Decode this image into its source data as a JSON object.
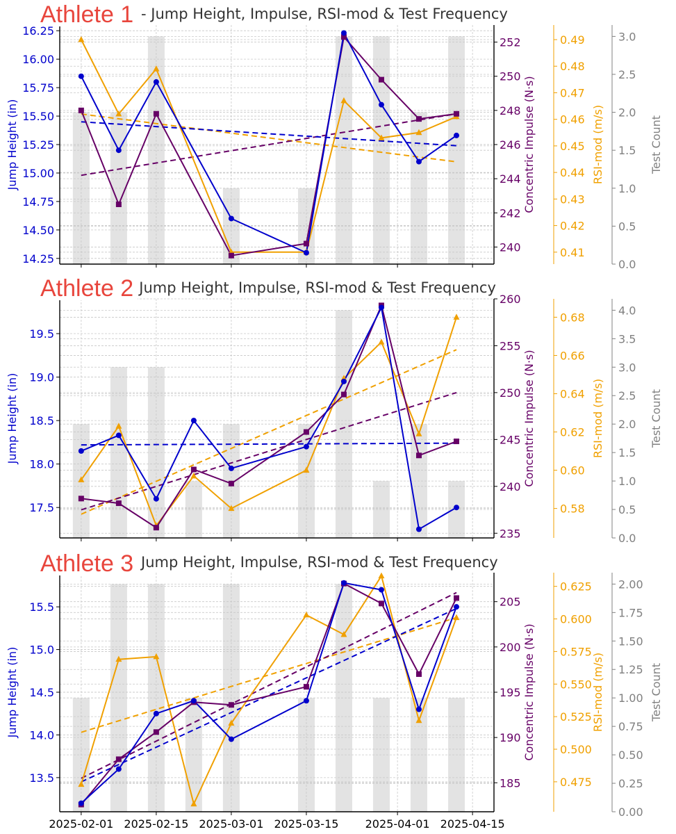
{
  "colors": {
    "jump": "#0000cc",
    "impulse": "#660066",
    "rsi": "#f0a000",
    "count": "#808080",
    "bars": "#e3e3e3",
    "athlete_tag": "#e8453c"
  },
  "x_axis": {
    "ticks": [
      "2025-02-01",
      "2025-02-15",
      "2025-03-01",
      "2025-03-15",
      "2025-04-01",
      "2025-04-15"
    ]
  },
  "panels": [
    {
      "athlete_label": "Athlete 1",
      "title": "- Jump Height, Impulse, RSI-mod & Test Frequency"
    },
    {
      "athlete_label": "Athlete 2",
      "title": "- Jump Height, Impulse, RSI-mod & Test Frequency"
    },
    {
      "athlete_label": "Athlete 3",
      "title": "Jump Height, Impulse, RSI-mod & Test Frequency"
    }
  ],
  "chart_data": [
    {
      "type": "line",
      "title": "Athlete 1 - Jump Height, Impulse, RSI-mod & Test Frequency",
      "dates": [
        "2025-02-01",
        "2025-02-08",
        "2025-02-15",
        "2025-03-01",
        "2025-03-15",
        "2025-03-22",
        "2025-03-29",
        "2025-04-05",
        "2025-04-12"
      ],
      "jump_height_in": [
        15.85,
        15.2,
        15.8,
        14.6,
        14.3,
        16.23,
        15.6,
        15.1,
        15.33
      ],
      "impulse_ns": [
        248,
        242.5,
        247.8,
        239.5,
        240.2,
        252.3,
        249.8,
        247.5,
        247.8
      ],
      "rsi_mod": [
        0.49,
        0.462,
        0.479,
        0.41,
        0.41,
        0.467,
        0.453,
        0.455,
        0.461
      ],
      "test_bar_dates": [
        "2025-02-01",
        "2025-02-08",
        "2025-02-15",
        "2025-03-01",
        "2025-03-15",
        "2025-03-22",
        "2025-03-29",
        "2025-04-05",
        "2025-04-12"
      ],
      "test_count": [
        2,
        2,
        3,
        1,
        1,
        3,
        3,
        2,
        3
      ],
      "trend": {
        "jump": [
          15.45,
          15.24
        ],
        "impulse": [
          244.2,
          247.8
        ],
        "rsi": [
          0.462,
          0.444
        ]
      },
      "yaxis_jump": {
        "label": "Jump Height (in)",
        "range": [
          14.2,
          16.3
        ],
        "ticks": [
          14.25,
          14.5,
          14.75,
          15.0,
          15.25,
          15.5,
          15.75,
          16.0,
          16.25
        ],
        "decimals": 2
      },
      "yaxis_impulse": {
        "label": "Concentric Impulse (N·s)",
        "range": [
          239,
          253
        ],
        "ticks": [
          240,
          242,
          244,
          246,
          248,
          250,
          252
        ],
        "decimals": 0
      },
      "yaxis_rsi": {
        "label": "RSI-mod (m/s)",
        "range": [
          0.4055,
          0.4955
        ],
        "ticks": [
          0.41,
          0.42,
          0.43,
          0.44,
          0.45,
          0.46,
          0.47,
          0.48,
          0.49
        ],
        "decimals": 2
      },
      "yaxis_count": {
        "label": "Test Count",
        "range": [
          0,
          3.15
        ],
        "ticks": [
          0.0,
          0.5,
          1.0,
          1.5,
          2.0,
          2.5,
          3.0
        ],
        "decimals": 1
      }
    },
    {
      "type": "line",
      "title": "Athlete 2 - Jump Height, Impulse, RSI-mod & Test Frequency",
      "dates": [
        "2025-02-01",
        "2025-02-08",
        "2025-02-15",
        "2025-02-22",
        "2025-03-01",
        "2025-03-15",
        "2025-03-22",
        "2025-03-29",
        "2025-04-05",
        "2025-04-12"
      ],
      "jump_height_in": [
        18.15,
        18.33,
        17.6,
        18.5,
        17.95,
        18.2,
        18.95,
        19.8,
        17.25,
        17.5
      ],
      "impulse_ns": [
        238.7,
        238.2,
        235.6,
        241.8,
        240.3,
        245.8,
        249.8,
        259.3,
        243.3,
        244.8
      ],
      "rsi_mod": [
        0.595,
        0.623,
        0.571,
        0.597,
        0.58,
        0.6,
        0.648,
        0.667,
        0.619,
        0.68
      ],
      "test_bar_dates": [
        "2025-02-01",
        "2025-02-08",
        "2025-02-15",
        "2025-02-22",
        "2025-03-01",
        "2025-03-15",
        "2025-03-22",
        "2025-03-29",
        "2025-04-05",
        "2025-04-12"
      ],
      "test_count": [
        2,
        3,
        3,
        1,
        2,
        2,
        4,
        1,
        2,
        1
      ],
      "trend": {
        "jump": [
          18.22,
          18.24
        ],
        "impulse": [
          237.5,
          250.0
        ],
        "rsi": [
          0.577,
          0.663
        ]
      },
      "yaxis_jump": {
        "label": "Jump Height (in)",
        "range": [
          17.15,
          19.9
        ],
        "ticks": [
          17.5,
          18.0,
          18.5,
          19.0,
          19.5
        ],
        "decimals": 1
      },
      "yaxis_impulse": {
        "label": "Concentric Impulse (N·s)",
        "range": [
          234.5,
          260.0
        ],
        "ticks": [
          235,
          240,
          245,
          250,
          255,
          260
        ],
        "decimals": 0
      },
      "yaxis_rsi": {
        "label": "RSI-mod (m/s)",
        "range": [
          0.5646,
          0.6896
        ],
        "ticks": [
          0.58,
          0.6,
          0.62,
          0.64,
          0.66,
          0.68
        ],
        "decimals": 2
      },
      "yaxis_count": {
        "label": "Test Count",
        "range": [
          0,
          4.2
        ],
        "ticks": [
          0.0,
          0.5,
          1.0,
          1.5,
          2.0,
          2.5,
          3.0,
          3.5,
          4.0
        ],
        "decimals": 1
      }
    },
    {
      "type": "line",
      "title": "Athlete 3 Jump Height, Impulse, RSI-mod & Test Frequency",
      "dates": [
        "2025-02-01",
        "2025-02-08",
        "2025-02-15",
        "2025-02-22",
        "2025-03-01",
        "2025-03-15",
        "2025-03-22",
        "2025-03-29",
        "2025-04-05",
        "2025-04-12"
      ],
      "jump_height_in": [
        13.2,
        13.6,
        14.25,
        14.4,
        13.95,
        14.4,
        15.78,
        15.7,
        14.3,
        15.5
      ],
      "impulse_ns": [
        182.6,
        187.6,
        190.6,
        193.9,
        193.6,
        195.6,
        207.0,
        204.8,
        197.0,
        205.4
      ],
      "rsi_mod": [
        0.473,
        0.569,
        0.571,
        0.458,
        0.52,
        0.603,
        0.588,
        0.633,
        0.522,
        0.601
      ],
      "test_bar_dates": [
        "2025-02-01",
        "2025-02-08",
        "2025-02-15",
        "2025-02-22",
        "2025-03-01",
        "2025-03-15",
        "2025-03-22",
        "2025-03-29",
        "2025-04-05",
        "2025-04-12"
      ],
      "test_count": [
        1,
        2,
        2,
        1,
        2,
        1,
        2,
        1,
        1,
        1
      ],
      "trend": {
        "jump": [
          13.45,
          15.48
        ],
        "impulse": [
          185.5,
          206.0
        ],
        "rsi": [
          0.513,
          0.601
        ]
      },
      "yaxis_jump": {
        "label": "Jump Height (in)",
        "range": [
          13.1,
          15.9
        ],
        "ticks": [
          13.5,
          14.0,
          14.5,
          15.0,
          15.5
        ],
        "decimals": 1
      },
      "yaxis_impulse": {
        "label": "Concentric Impulse (N·s)",
        "range": [
          181.8,
          208.2
        ],
        "ticks": [
          185,
          190,
          195,
          200,
          205
        ],
        "decimals": 0
      },
      "yaxis_rsi": {
        "label": "RSI-mod (m/s)",
        "range": [
          0.452,
          0.6355
        ],
        "ticks": [
          0.475,
          0.5,
          0.525,
          0.55,
          0.575,
          0.6,
          0.625
        ],
        "decimals": 3
      },
      "yaxis_count": {
        "label": "Test Count",
        "range": [
          0,
          2.1
        ],
        "ticks": [
          0.0,
          0.25,
          0.5,
          0.75,
          1.0,
          1.25,
          1.5,
          1.75,
          2.0
        ],
        "decimals": 2
      }
    }
  ]
}
